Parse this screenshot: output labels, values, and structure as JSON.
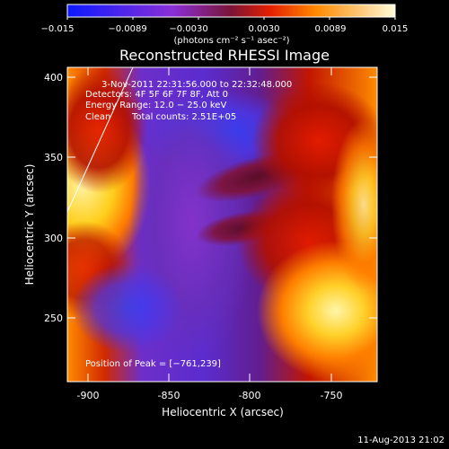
{
  "colorbar": {
    "ticks": [
      "−0.015",
      "−0.0089",
      "−0.0030",
      "0.0030",
      "0.0089",
      "0.015"
    ],
    "units": "(photons cm⁻² s⁻¹ asec⁻²)"
  },
  "title": "Reconstructed RHESSI Image",
  "info": {
    "time_range": "3-Nov-2011 22:31:56.000 to 22:32:48.000",
    "detectors": "Detectors: 4F 5F 6F 7F 8F, Att 0",
    "energy_range": "Energy Range: 12.0 − 25.0 keV",
    "clean_label": "Clean",
    "total_counts": "Total counts: 2.51E+05",
    "peak_position": "Position of Peak = [−761,239]"
  },
  "axes": {
    "xlabel": "Heliocentric X (arcsec)",
    "ylabel": "Heliocentric Y (arcsec)",
    "xlim": [
      -912,
      -722
    ],
    "ylim": [
      211,
      405
    ],
    "xticks": [
      -900,
      -850,
      -800,
      -750
    ],
    "yticks": [
      250,
      300,
      350,
      400
    ]
  },
  "timestamp": "11-Aug-2013 21:02",
  "colors": {
    "background": "#000000",
    "foreground": "#ffffff"
  }
}
